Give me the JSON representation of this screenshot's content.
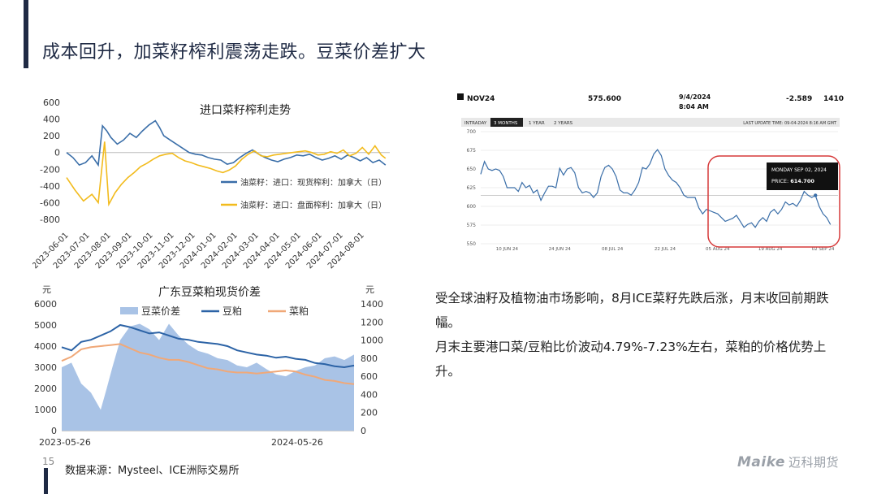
{
  "page": {
    "title": "成本回升，加菜籽榨利震荡走跌。豆菜价差扩大",
    "page_number": "15",
    "source": "数据来源：Mysteel、ICE洲际交易所",
    "logo_text": "Maike",
    "logo_cn": "迈科期货",
    "paragraph1": "受全球油籽及植物油市场影响，8月ICE菜籽先跌后涨，月末收回前期跌幅。",
    "paragraph2": "月末主要港口菜/豆粕比价波动4.79%-7.23%左右，菜粕的价格优势上升。"
  },
  "chart_data": [
    {
      "type": "line",
      "title": "进口菜籽榨利走势",
      "ylim": [
        -800,
        600
      ],
      "yticks": [
        "600",
        "400",
        "200",
        "0",
        "-200",
        "-400",
        "-600",
        "-800"
      ],
      "ytick_values": [
        600,
        400,
        200,
        0,
        -200,
        -400,
        -600,
        -800
      ],
      "xtick_labels": [
        "2023-06-01",
        "2023-07-01",
        "2023-08-01",
        "2023-09-01",
        "2023-10-01",
        "2023-11-01",
        "2023-12-01",
        "2024-01-01",
        "2024-02-01",
        "2024-03-01",
        "2024-04-01",
        "2024-05-01",
        "2024-06-01",
        "2024-07-01",
        "2024-08-01"
      ],
      "xlim": [
        0,
        15.3
      ],
      "series": [
        {
          "name": "油菜籽：进口：现货榨利：加拿大（日）",
          "color": "#3a6ea8",
          "x": [
            0,
            0.3,
            0.6,
            0.9,
            1.2,
            1.5,
            1.7,
            1.9,
            2.1,
            2.4,
            2.7,
            3.0,
            3.3,
            3.6,
            3.9,
            4.2,
            4.4,
            4.6,
            4.9,
            5.2,
            5.5,
            5.8,
            6.1,
            6.4,
            6.7,
            7.0,
            7.3,
            7.6,
            7.9,
            8.2,
            8.5,
            8.8,
            9.1,
            9.4,
            9.7,
            10.0,
            10.3,
            10.6,
            10.9,
            11.2,
            11.5,
            11.8,
            12.1,
            12.4,
            12.7,
            13.0,
            13.3,
            13.6,
            13.9,
            14.2,
            14.5,
            14.8,
            15.1
          ],
          "y": [
            0,
            -60,
            -150,
            -120,
            -40,
            -150,
            320,
            260,
            180,
            100,
            150,
            230,
            180,
            260,
            330,
            380,
            300,
            200,
            150,
            100,
            50,
            0,
            -20,
            -30,
            -60,
            -80,
            -90,
            -140,
            -120,
            -60,
            -10,
            30,
            -20,
            -60,
            -90,
            -110,
            -80,
            -60,
            -30,
            -40,
            -20,
            -60,
            -90,
            -70,
            -40,
            -80,
            -30,
            -60,
            -100,
            -60,
            -120,
            -90,
            -150
          ]
        },
        {
          "name": "油菜籽：进口：盘面榨利：加拿大（日）",
          "color": "#f2bb1d",
          "x": [
            0,
            0.4,
            0.8,
            1.2,
            1.5,
            1.8,
            2.0,
            2.3,
            2.6,
            2.9,
            3.2,
            3.5,
            3.8,
            4.1,
            4.4,
            4.7,
            5.0,
            5.3,
            5.6,
            5.9,
            6.2,
            6.5,
            6.8,
            7.1,
            7.4,
            7.7,
            8.0,
            8.3,
            8.6,
            8.9,
            9.2,
            9.5,
            9.8,
            10.1,
            10.4,
            10.7,
            11.0,
            11.3,
            11.6,
            11.9,
            12.2,
            12.5,
            12.8,
            13.1,
            13.4,
            13.7,
            14.0,
            14.3,
            14.6,
            14.9,
            15.1
          ],
          "y": [
            -300,
            -450,
            -580,
            -500,
            -600,
            130,
            -620,
            -480,
            -380,
            -300,
            -240,
            -170,
            -130,
            -80,
            -40,
            -20,
            -10,
            -60,
            -100,
            -120,
            -150,
            -170,
            -190,
            -220,
            -240,
            -210,
            -160,
            -80,
            -20,
            20,
            -40,
            -50,
            -30,
            -20,
            -10,
            0,
            10,
            20,
            0,
            -30,
            -20,
            10,
            -10,
            30,
            -40,
            -10,
            60,
            -20,
            80,
            -30,
            -70
          ]
        }
      ]
    },
    {
      "type": "line",
      "title": "NOV24",
      "header": {
        "contract": "NOV24",
        "price": "575.600",
        "date": "9/4/2024",
        "time": "8:04 AM",
        "change": "-2.589",
        "volume": "1410"
      },
      "tabs": [
        "INTRADAY",
        "3 MONTHS",
        "1 YEAR",
        "2 YEARS"
      ],
      "active_tab": "3 MONTHS",
      "last_update": "LAST UPDATE TIME: 09-04-2024 8:16 AM GMT",
      "ylim": [
        550,
        700
      ],
      "yticks": [
        "700",
        "675",
        "650",
        "625",
        "600",
        "575",
        "550"
      ],
      "ytick_values": [
        700,
        675,
        650,
        625,
        600,
        575,
        550
      ],
      "xtick_labels": [
        "10 JUN 24",
        "24 JUN 24",
        "08 JUL 24",
        "22 JUL 24",
        "05 AUG 24",
        "19 AUG 24",
        "02 SEP 24"
      ],
      "xtick_positions": [
        7,
        21,
        35,
        49,
        63,
        77,
        91
      ],
      "xlim": [
        0,
        95
      ],
      "reference_line": 614.7,
      "tooltip": {
        "date": "MONDAY SEP 02, 2024",
        "price_label": "PRICE: ",
        "price": "614.700"
      },
      "series": [
        {
          "name": "NOV24",
          "color": "#3a6ea8",
          "x": [
            0,
            1,
            2,
            3,
            4,
            5,
            6,
            7,
            8,
            9,
            10,
            11,
            12,
            13,
            14,
            15,
            16,
            17,
            18,
            19,
            20,
            21,
            22,
            23,
            24,
            25,
            26,
            27,
            28,
            29,
            30,
            31,
            32,
            33,
            34,
            35,
            36,
            37,
            38,
            39,
            40,
            41,
            42,
            43,
            44,
            45,
            46,
            47,
            48,
            49,
            50,
            51,
            52,
            53,
            54,
            55,
            56,
            57,
            58,
            59,
            60,
            61,
            62,
            63,
            64,
            65,
            66,
            67,
            68,
            69,
            70,
            71,
            72,
            73,
            74,
            75,
            76,
            77,
            78,
            79,
            80,
            81,
            82,
            83,
            84,
            85,
            86,
            87,
            88,
            89,
            90,
            91,
            92,
            93
          ],
          "y": [
            643,
            660,
            650,
            648,
            650,
            648,
            640,
            625,
            625,
            625,
            620,
            632,
            625,
            628,
            618,
            622,
            608,
            618,
            627,
            627,
            625,
            651,
            642,
            650,
            652,
            645,
            625,
            618,
            620,
            618,
            612,
            618,
            640,
            652,
            655,
            650,
            640,
            622,
            618,
            618,
            615,
            622,
            632,
            652,
            650,
            657,
            670,
            676,
            668,
            650,
            641,
            635,
            632,
            625,
            615,
            612,
            612,
            612,
            598,
            590,
            596,
            594,
            592,
            590,
            585,
            580,
            582,
            584,
            588,
            580,
            572,
            576,
            578,
            572,
            580,
            585,
            580,
            592,
            596,
            590,
            596,
            606,
            602,
            604,
            600,
            608,
            620,
            615,
            612,
            614.7,
            600,
            590,
            585,
            575.6
          ]
        }
      ]
    },
    {
      "type": "area",
      "title": "广东豆菜粕现货价差",
      "left_unit": "元",
      "right_unit": "元",
      "ylim_left": [
        0,
        6000
      ],
      "ylim_right": [
        0,
        1400
      ],
      "yticks_left": [
        "6000",
        "5000",
        "4000",
        "3000",
        "2000",
        "1000",
        "0"
      ],
      "ytick_values_left": [
        6000,
        5000,
        4000,
        3000,
        2000,
        1000,
        0
      ],
      "yticks_right": [
        "1400",
        "1200",
        "1000",
        "800",
        "600",
        "400",
        "200",
        "0"
      ],
      "ytick_values_right": [
        1400,
        1200,
        1000,
        800,
        600,
        400,
        200,
        0
      ],
      "xtick_labels": [
        "2023-05-26",
        "2024-05-26"
      ],
      "xtick_positions": [
        0,
        12
      ],
      "xlim": [
        0,
        15
      ],
      "series": [
        {
          "name": "豆菜价差",
          "color": "#a9c3e6",
          "axis": "right",
          "x": [
            0,
            0.5,
            1,
            1.5,
            2,
            2.3,
            2.6,
            3,
            3.5,
            4,
            4.5,
            5,
            5.5,
            6,
            6.5,
            7,
            7.5,
            8,
            8.5,
            9,
            9.5,
            10,
            10.5,
            11,
            11.5,
            12,
            12.5,
            13,
            13.5,
            14,
            14.5,
            15
          ],
          "y": [
            700,
            750,
            520,
            420,
            230,
            460,
            700,
            1000,
            1150,
            1180,
            1120,
            1000,
            1180,
            1050,
            950,
            880,
            850,
            800,
            780,
            720,
            700,
            750,
            680,
            620,
            600,
            660,
            700,
            720,
            800,
            820,
            780,
            840
          ]
        },
        {
          "name": "豆粕",
          "color": "#2c63a6",
          "axis": "left",
          "x": [
            0,
            0.5,
            1,
            1.5,
            2,
            2.5,
            3,
            3.5,
            4,
            4.5,
            5,
            5.5,
            6,
            6.5,
            7,
            7.5,
            8,
            8.5,
            9,
            9.5,
            10,
            10.5,
            11,
            11.5,
            12,
            12.5,
            13,
            13.5,
            14,
            14.5,
            15
          ],
          "y": [
            3950,
            3800,
            4200,
            4300,
            4500,
            4700,
            5000,
            4900,
            4750,
            4600,
            4650,
            4500,
            4350,
            4300,
            4200,
            4150,
            4100,
            4000,
            3800,
            3700,
            3600,
            3550,
            3450,
            3500,
            3400,
            3350,
            3200,
            3150,
            3050,
            3000,
            3080
          ]
        },
        {
          "name": "菜粕",
          "color": "#f0a878",
          "axis": "left",
          "x": [
            0,
            0.5,
            1,
            1.5,
            2,
            2.5,
            3,
            3.5,
            4,
            4.5,
            5,
            5.5,
            6,
            6.5,
            7,
            7.5,
            8,
            8.5,
            9,
            9.5,
            10,
            10.5,
            11,
            11.5,
            12,
            12.5,
            13,
            13.5,
            14,
            14.5,
            15
          ],
          "y": [
            3300,
            3500,
            3850,
            3950,
            4000,
            4050,
            4100,
            3900,
            3700,
            3600,
            3450,
            3350,
            3350,
            3250,
            3100,
            2950,
            2900,
            2800,
            2750,
            2750,
            2700,
            2750,
            2800,
            2850,
            2800,
            2650,
            2550,
            2400,
            2350,
            2250,
            2200
          ]
        }
      ]
    }
  ]
}
